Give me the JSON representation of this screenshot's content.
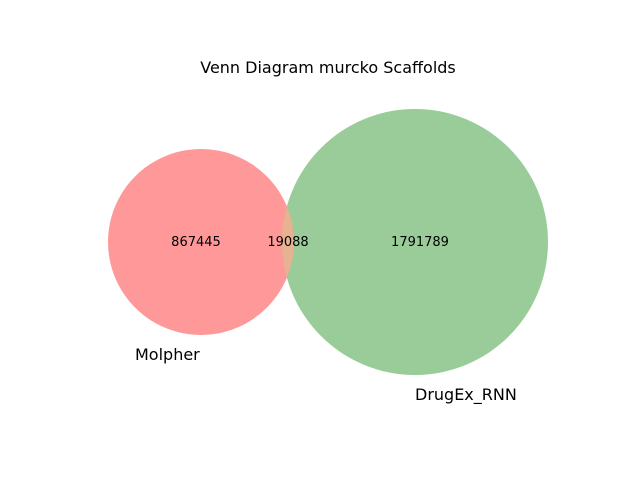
{
  "title": "Venn Diagram murcko Scaffolds",
  "chart_data": {
    "type": "venn2",
    "title": "Venn Diagram murcko Scaffolds",
    "sets": [
      {
        "name": "Molpher",
        "only_count": "867445",
        "color": "#ff9999"
      },
      {
        "name": "DrugEx_RNN",
        "only_count": "1791789",
        "color": "#99cc99"
      }
    ],
    "intersection": {
      "count": "19088",
      "color": "#e6b28f"
    }
  }
}
